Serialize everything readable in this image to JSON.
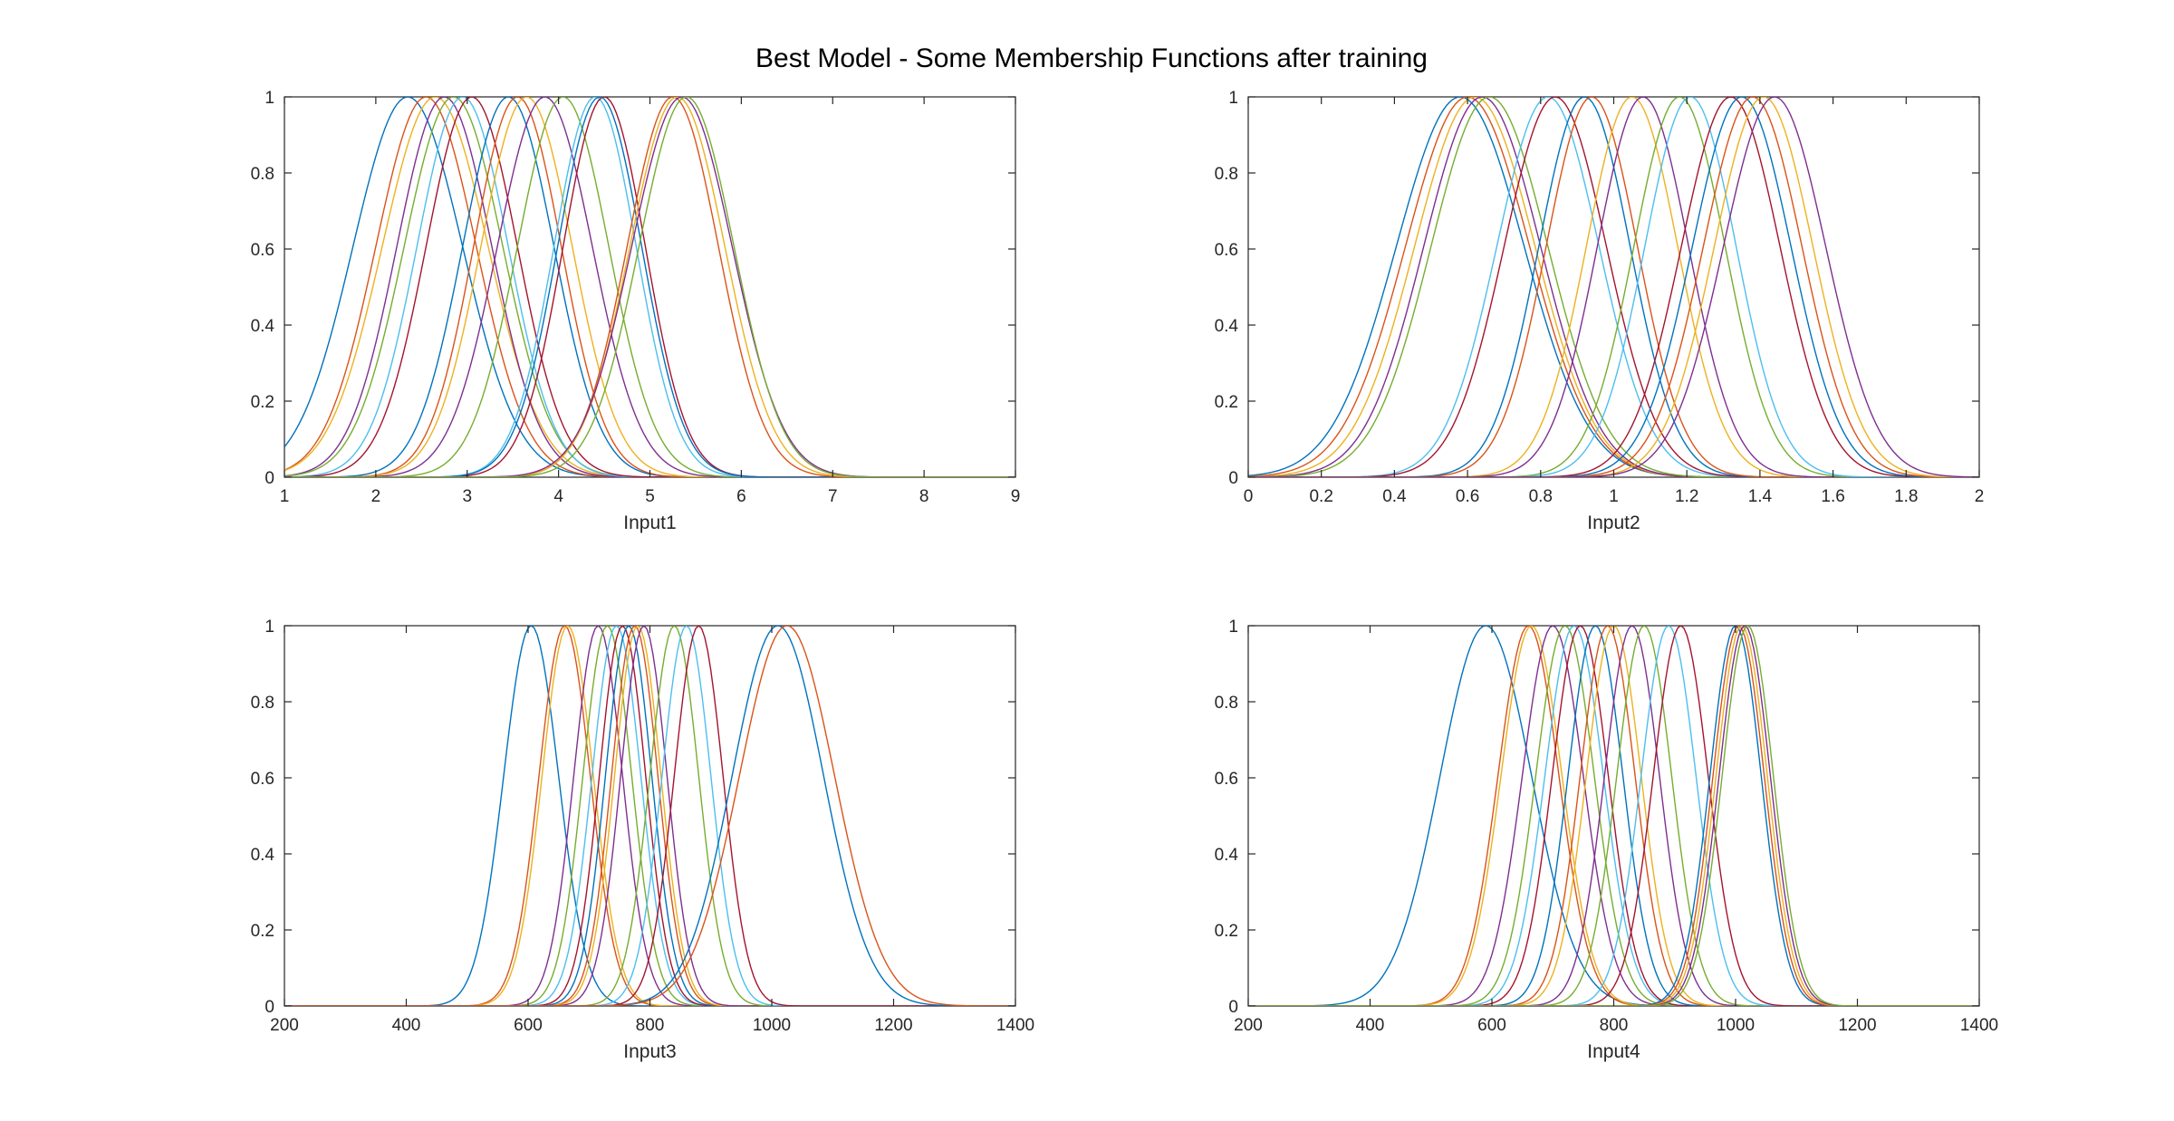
{
  "figure": {
    "title": "Best Model - Some Membership Functions after training"
  },
  "colors": [
    "#0072BD",
    "#D95319",
    "#EDB120",
    "#7E2F8E",
    "#77AC30",
    "#4DBEEE",
    "#A2142F"
  ],
  "chart_data": [
    {
      "type": "line",
      "xlabel": "Input1",
      "ylabel": "",
      "xlim": [
        1,
        9
      ],
      "ylim": [
        0,
        1
      ],
      "xticks": [
        1,
        2,
        3,
        4,
        5,
        6,
        7,
        8,
        9
      ],
      "xtick_labels": [
        "1",
        "2",
        "3",
        "4",
        "5",
        "6",
        "7",
        "8",
        "9"
      ],
      "yticks": [
        0,
        0.2,
        0.4,
        0.6,
        0.8,
        1
      ],
      "ytick_labels": [
        "0",
        "0.2",
        "0.4",
        "0.6",
        "0.8",
        "1"
      ],
      "grid": false,
      "series": [
        {
          "center": 2.35,
          "sigma": 0.6
        },
        {
          "center": 2.55,
          "sigma": 0.55
        },
        {
          "center": 2.65,
          "sigma": 0.58
        },
        {
          "center": 2.75,
          "sigma": 0.52
        },
        {
          "center": 2.85,
          "sigma": 0.54
        },
        {
          "center": 2.95,
          "sigma": 0.5
        },
        {
          "center": 3.05,
          "sigma": 0.5
        },
        {
          "center": 3.45,
          "sigma": 0.5
        },
        {
          "center": 3.55,
          "sigma": 0.48
        },
        {
          "center": 3.65,
          "sigma": 0.5
        },
        {
          "center": 3.85,
          "sigma": 0.52
        },
        {
          "center": 4.05,
          "sigma": 0.5
        },
        {
          "center": 4.4,
          "sigma": 0.45
        },
        {
          "center": 4.5,
          "sigma": 0.45
        },
        {
          "center": 4.45,
          "sigma": 0.46
        },
        {
          "center": 5.25,
          "sigma": 0.5
        },
        {
          "center": 5.3,
          "sigma": 0.52
        },
        {
          "center": 5.35,
          "sigma": 0.55
        },
        {
          "center": 5.4,
          "sigma": 0.52
        }
      ]
    },
    {
      "type": "line",
      "xlabel": "Input2",
      "ylabel": "",
      "xlim": [
        0,
        2
      ],
      "ylim": [
        0,
        1
      ],
      "xticks": [
        0,
        0.2,
        0.4,
        0.6,
        0.8,
        1,
        1.2,
        1.4,
        1.6,
        1.8,
        2
      ],
      "xtick_labels": [
        "0",
        "0.2",
        "0.4",
        "0.6",
        "0.8",
        "1",
        "1.2",
        "1.4",
        "1.6",
        "1.8",
        "2"
      ],
      "yticks": [
        0,
        0.2,
        0.4,
        0.6,
        0.8,
        1
      ],
      "ytick_labels": [
        "0",
        "0.2",
        "0.4",
        "0.6",
        "0.8",
        "1"
      ],
      "grid": false,
      "series": [
        {
          "center": 0.58,
          "sigma": 0.175
        },
        {
          "center": 0.6,
          "sigma": 0.17
        },
        {
          "center": 0.62,
          "sigma": 0.165
        },
        {
          "center": 0.64,
          "sigma": 0.16
        },
        {
          "center": 0.66,
          "sigma": 0.16
        },
        {
          "center": 0.82,
          "sigma": 0.14
        },
        {
          "center": 0.84,
          "sigma": 0.14
        },
        {
          "center": 0.92,
          "sigma": 0.125
        },
        {
          "center": 0.94,
          "sigma": 0.125
        },
        {
          "center": 1.05,
          "sigma": 0.125
        },
        {
          "center": 1.08,
          "sigma": 0.125
        },
        {
          "center": 1.18,
          "sigma": 0.125
        },
        {
          "center": 1.21,
          "sigma": 0.125
        },
        {
          "center": 1.32,
          "sigma": 0.135
        },
        {
          "center": 1.35,
          "sigma": 0.135
        },
        {
          "center": 1.38,
          "sigma": 0.135
        },
        {
          "center": 1.41,
          "sigma": 0.135
        },
        {
          "center": 1.44,
          "sigma": 0.14
        }
      ]
    },
    {
      "type": "line",
      "xlabel": "Input3",
      "ylabel": "",
      "xlim": [
        200,
        1400
      ],
      "ylim": [
        0,
        1
      ],
      "xticks": [
        200,
        400,
        600,
        800,
        1000,
        1200,
        1400
      ],
      "xtick_labels": [
        "200",
        "400",
        "600",
        "800",
        "1000",
        "1200",
        "1400"
      ],
      "yticks": [
        0,
        0.2,
        0.4,
        0.6,
        0.8,
        1
      ],
      "ytick_labels": [
        "0",
        "0.2",
        "0.4",
        "0.6",
        "0.8",
        "1"
      ],
      "grid": false,
      "series": [
        {
          "center": 605,
          "sigma": 45
        },
        {
          "center": 660,
          "sigma": 42
        },
        {
          "center": 665,
          "sigma": 42
        },
        {
          "center": 715,
          "sigma": 40
        },
        {
          "center": 730,
          "sigma": 40
        },
        {
          "center": 745,
          "sigma": 40
        },
        {
          "center": 755,
          "sigma": 38
        },
        {
          "center": 765,
          "sigma": 38
        },
        {
          "center": 775,
          "sigma": 38
        },
        {
          "center": 780,
          "sigma": 38
        },
        {
          "center": 790,
          "sigma": 38
        },
        {
          "center": 840,
          "sigma": 40
        },
        {
          "center": 860,
          "sigma": 40
        },
        {
          "center": 880,
          "sigma": 40
        },
        {
          "center": 1010,
          "sigma": 75
        },
        {
          "center": 1025,
          "sigma": 78
        }
      ]
    },
    {
      "type": "line",
      "xlabel": "Input4",
      "ylabel": "",
      "xlim": [
        200,
        1400
      ],
      "ylim": [
        0,
        1
      ],
      "xticks": [
        200,
        400,
        600,
        800,
        1000,
        1200,
        1400
      ],
      "xtick_labels": [
        "200",
        "400",
        "600",
        "800",
        "1000",
        "1200",
        "1400"
      ],
      "yticks": [
        0,
        0.2,
        0.4,
        0.6,
        0.8,
        1
      ],
      "ytick_labels": [
        "0",
        "0.2",
        "0.4",
        "0.6",
        "0.8",
        "1"
      ],
      "grid": false,
      "series": [
        {
          "center": 590,
          "sigma": 75
        },
        {
          "center": 660,
          "sigma": 50
        },
        {
          "center": 665,
          "sigma": 50
        },
        {
          "center": 700,
          "sigma": 50
        },
        {
          "center": 720,
          "sigma": 48
        },
        {
          "center": 735,
          "sigma": 48
        },
        {
          "center": 745,
          "sigma": 46
        },
        {
          "center": 770,
          "sigma": 45
        },
        {
          "center": 790,
          "sigma": 45
        },
        {
          "center": 800,
          "sigma": 45
        },
        {
          "center": 830,
          "sigma": 45
        },
        {
          "center": 850,
          "sigma": 45
        },
        {
          "center": 890,
          "sigma": 45
        },
        {
          "center": 910,
          "sigma": 45
        },
        {
          "center": 1000,
          "sigma": 42
        },
        {
          "center": 1005,
          "sigma": 42
        },
        {
          "center": 1010,
          "sigma": 42
        },
        {
          "center": 1015,
          "sigma": 42
        },
        {
          "center": 1020,
          "sigma": 42
        }
      ]
    }
  ]
}
